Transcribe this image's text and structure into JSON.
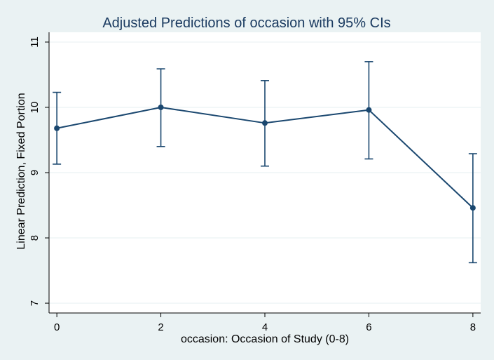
{
  "colors": {
    "background": "#eaf2f3",
    "plot_background": "#ffffff",
    "title": "#1a3a60",
    "series": "#1a476f",
    "grid": "#eaf2f3",
    "axis": "#000000"
  },
  "chart_data": {
    "type": "line",
    "title": "Adjusted Predictions of occasion with 95% CIs",
    "xlabel": "occasion: Occasion of Study (0-8)",
    "ylabel": "Linear Prediction, Fixed Portion",
    "xlim": [
      -0.15,
      8.15
    ],
    "ylim": [
      6.85,
      11.15
    ],
    "xticks": [
      0,
      2,
      4,
      6,
      8
    ],
    "yticks": [
      7,
      8,
      9,
      10,
      11
    ],
    "grid": true,
    "legend": "none",
    "x": [
      0,
      2,
      4,
      6,
      8
    ],
    "series": [
      {
        "values": [
          9.68,
          10.0,
          9.76,
          9.96,
          8.46
        ],
        "ci_lower": [
          9.13,
          9.4,
          9.1,
          9.21,
          7.62
        ],
        "ci_upper": [
          10.23,
          10.59,
          10.41,
          10.7,
          9.29
        ]
      }
    ]
  }
}
